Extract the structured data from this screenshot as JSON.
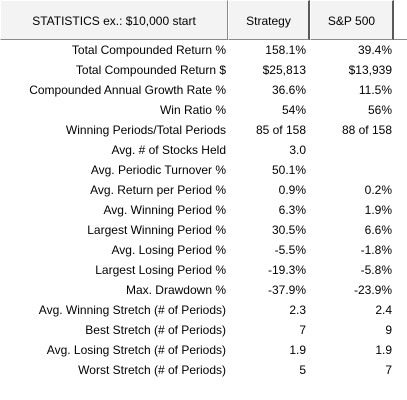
{
  "header": {
    "stats_title": "STATISTICS  ex.: $10,000 start",
    "strategy_col": "Strategy",
    "sp500_col": "S&P 500"
  },
  "rows": [
    {
      "label": "Total Compounded Return %",
      "strategy": "158.1%",
      "sp500": "39.4%"
    },
    {
      "label": "Total Compounded Return $",
      "strategy": "$25,813",
      "sp500": "$13,939"
    },
    {
      "label": "Compounded Annual Growth Rate %",
      "strategy": "36.6%",
      "sp500": "11.5%"
    },
    {
      "label": "Win Ratio %",
      "strategy": "54%",
      "sp500": "56%"
    },
    {
      "label": "Winning Periods/Total Periods",
      "strategy": "85 of 158",
      "sp500": "88 of 158"
    },
    {
      "label": "Avg. # of Stocks Held",
      "strategy": "3.0",
      "sp500": ""
    },
    {
      "label": "Avg. Periodic Turnover %",
      "strategy": "50.1%",
      "sp500": ""
    },
    {
      "label": "Avg. Return per Period %",
      "strategy": "0.9%",
      "sp500": "0.2%"
    },
    {
      "label": "Avg. Winning Period %",
      "strategy": "6.3%",
      "sp500": "1.9%"
    },
    {
      "label": "Largest Winning Period %",
      "strategy": "30.5%",
      "sp500": "6.6%"
    },
    {
      "label": "Avg. Losing Period %",
      "strategy": "-5.5%",
      "sp500": "-1.8%"
    },
    {
      "label": "Largest Losing Period %",
      "strategy": "-19.3%",
      "sp500": "-5.8%"
    },
    {
      "label": "Max. Drawdown %",
      "strategy": "-37.9%",
      "sp500": "-23.9%"
    },
    {
      "label": "Avg. Winning Stretch (# of Periods)",
      "strategy": "2.3",
      "sp500": "2.4"
    },
    {
      "label": "Best Stretch (# of Periods)",
      "strategy": "7",
      "sp500": "9"
    },
    {
      "label": "Avg. Losing Stretch (# of Periods)",
      "strategy": "1.9",
      "sp500": "1.9"
    },
    {
      "label": "Worst Stretch (# of Periods)",
      "strategy": "5",
      "sp500": "7"
    }
  ]
}
